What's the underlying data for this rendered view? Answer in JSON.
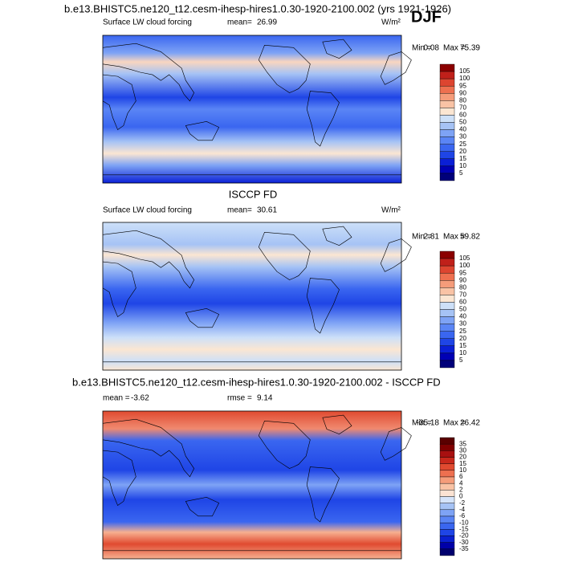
{
  "panels": [
    {
      "title": "b.e13.BHISTC5.ne120_t12.cesm-ihesp-hires1.0.30-1920-2100.002 (yrs 1921-1926)",
      "season": "DJF",
      "left_label": "Surface LW cloud forcing",
      "mean_label": "mean=",
      "mean": 26.99,
      "units": "W/m²",
      "min_label": "Min =",
      "min": 0.08,
      "max_label": "Max =",
      "max": 75.39,
      "colorbar": [
        105,
        100,
        95,
        90,
        80,
        70,
        60,
        50,
        40,
        30,
        25,
        20,
        15,
        10,
        5
      ]
    },
    {
      "title": "ISCCP FD",
      "left_label": "Surface LW cloud forcing",
      "mean_label": "mean=",
      "mean": 30.61,
      "units": "W/m²",
      "min_label": "Min =",
      "min": 2.81,
      "max_label": "Max =",
      "max": 59.82,
      "colorbar": [
        105,
        100,
        95,
        90,
        80,
        70,
        60,
        50,
        40,
        30,
        25,
        20,
        15,
        10,
        5
      ]
    },
    {
      "title": "b.e13.BHISTC5.ne120_t12.cesm-ihesp-hires1.0.30-1920-2100.002 - ISCCP FD",
      "mean_label": "mean =",
      "mean": -3.62,
      "rmse_label": "rmse =",
      "rmse": 9.14,
      "min_label": "Min =",
      "min": -35.18,
      "max_label": "Max =",
      "max": 26.42,
      "colorbar": [
        35,
        30,
        20,
        15,
        10,
        6,
        4,
        2,
        0,
        -2,
        -4,
        -6,
        -10,
        -15,
        -20,
        -30,
        -35
      ]
    }
  ]
}
